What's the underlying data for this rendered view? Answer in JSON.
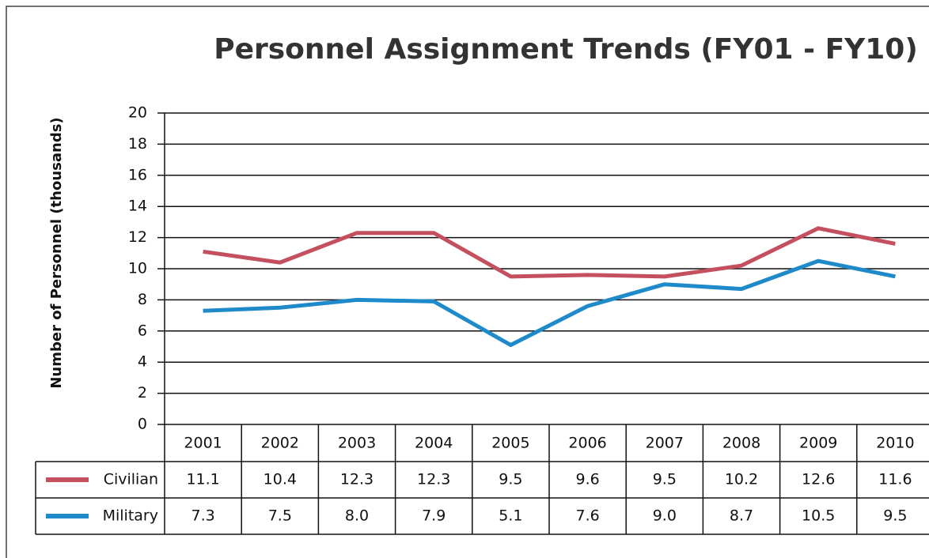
{
  "chart_data": {
    "type": "line",
    "title": "Personnel Assignment Trends (FY01 - FY10)",
    "y_label": "Number of Personnel (thousands)",
    "categories": [
      "2001",
      "2002",
      "2003",
      "2004",
      "2005",
      "2006",
      "2007",
      "2008",
      "2009",
      "2010"
    ],
    "series": [
      {
        "name": "Civilian",
        "color": "#c4505f",
        "values": [
          11.1,
          10.4,
          12.3,
          12.3,
          9.5,
          9.6,
          9.5,
          10.2,
          12.6,
          11.6
        ],
        "value_labels": [
          "11.1",
          "10.4",
          "12.3",
          "12.3",
          "9.5",
          "9.6",
          "9.5",
          "10.2",
          "12.6",
          "11.6"
        ]
      },
      {
        "name": "Military",
        "color": "#1f8ac9",
        "values": [
          7.3,
          7.5,
          8.0,
          7.9,
          5.1,
          7.6,
          9.0,
          8.7,
          10.5,
          9.5
        ],
        "value_labels": [
          "7.3",
          "7.5",
          "8.0",
          "7.9",
          "5.1",
          "7.6",
          "9.0",
          "8.7",
          "10.5",
          "9.5"
        ]
      }
    ],
    "ylim": [
      0,
      20
    ],
    "yticks": [
      0,
      2,
      4,
      6,
      8,
      10,
      12,
      14,
      16,
      18,
      20
    ],
    "grid": true
  }
}
